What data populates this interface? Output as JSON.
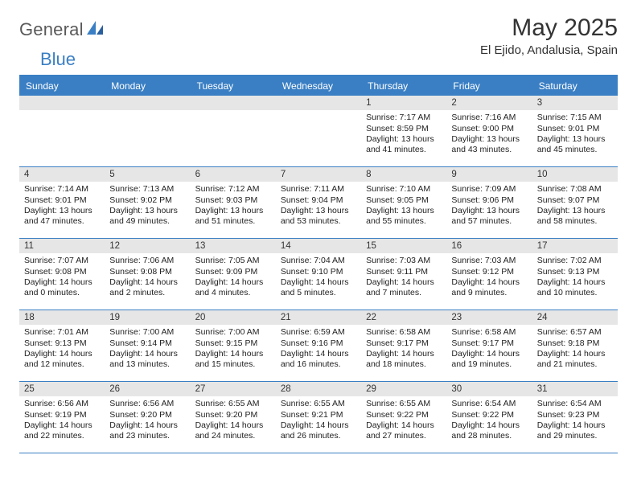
{
  "brand": {
    "part1": "General",
    "part2": "Blue"
  },
  "title": "May 2025",
  "location": "El Ejido, Andalusia, Spain",
  "header_bg": "#3a7fc4",
  "band_bg": "#e6e6e6",
  "day_names": [
    "Sunday",
    "Monday",
    "Tuesday",
    "Wednesday",
    "Thursday",
    "Friday",
    "Saturday"
  ],
  "weeks": [
    [
      null,
      null,
      null,
      null,
      {
        "n": "1",
        "sr": "Sunrise: 7:17 AM",
        "ss": "Sunset: 8:59 PM",
        "dl": "Daylight: 13 hours and 41 minutes."
      },
      {
        "n": "2",
        "sr": "Sunrise: 7:16 AM",
        "ss": "Sunset: 9:00 PM",
        "dl": "Daylight: 13 hours and 43 minutes."
      },
      {
        "n": "3",
        "sr": "Sunrise: 7:15 AM",
        "ss": "Sunset: 9:01 PM",
        "dl": "Daylight: 13 hours and 45 minutes."
      }
    ],
    [
      {
        "n": "4",
        "sr": "Sunrise: 7:14 AM",
        "ss": "Sunset: 9:01 PM",
        "dl": "Daylight: 13 hours and 47 minutes."
      },
      {
        "n": "5",
        "sr": "Sunrise: 7:13 AM",
        "ss": "Sunset: 9:02 PM",
        "dl": "Daylight: 13 hours and 49 minutes."
      },
      {
        "n": "6",
        "sr": "Sunrise: 7:12 AM",
        "ss": "Sunset: 9:03 PM",
        "dl": "Daylight: 13 hours and 51 minutes."
      },
      {
        "n": "7",
        "sr": "Sunrise: 7:11 AM",
        "ss": "Sunset: 9:04 PM",
        "dl": "Daylight: 13 hours and 53 minutes."
      },
      {
        "n": "8",
        "sr": "Sunrise: 7:10 AM",
        "ss": "Sunset: 9:05 PM",
        "dl": "Daylight: 13 hours and 55 minutes."
      },
      {
        "n": "9",
        "sr": "Sunrise: 7:09 AM",
        "ss": "Sunset: 9:06 PM",
        "dl": "Daylight: 13 hours and 57 minutes."
      },
      {
        "n": "10",
        "sr": "Sunrise: 7:08 AM",
        "ss": "Sunset: 9:07 PM",
        "dl": "Daylight: 13 hours and 58 minutes."
      }
    ],
    [
      {
        "n": "11",
        "sr": "Sunrise: 7:07 AM",
        "ss": "Sunset: 9:08 PM",
        "dl": "Daylight: 14 hours and 0 minutes."
      },
      {
        "n": "12",
        "sr": "Sunrise: 7:06 AM",
        "ss": "Sunset: 9:08 PM",
        "dl": "Daylight: 14 hours and 2 minutes."
      },
      {
        "n": "13",
        "sr": "Sunrise: 7:05 AM",
        "ss": "Sunset: 9:09 PM",
        "dl": "Daylight: 14 hours and 4 minutes."
      },
      {
        "n": "14",
        "sr": "Sunrise: 7:04 AM",
        "ss": "Sunset: 9:10 PM",
        "dl": "Daylight: 14 hours and 5 minutes."
      },
      {
        "n": "15",
        "sr": "Sunrise: 7:03 AM",
        "ss": "Sunset: 9:11 PM",
        "dl": "Daylight: 14 hours and 7 minutes."
      },
      {
        "n": "16",
        "sr": "Sunrise: 7:03 AM",
        "ss": "Sunset: 9:12 PM",
        "dl": "Daylight: 14 hours and 9 minutes."
      },
      {
        "n": "17",
        "sr": "Sunrise: 7:02 AM",
        "ss": "Sunset: 9:13 PM",
        "dl": "Daylight: 14 hours and 10 minutes."
      }
    ],
    [
      {
        "n": "18",
        "sr": "Sunrise: 7:01 AM",
        "ss": "Sunset: 9:13 PM",
        "dl": "Daylight: 14 hours and 12 minutes."
      },
      {
        "n": "19",
        "sr": "Sunrise: 7:00 AM",
        "ss": "Sunset: 9:14 PM",
        "dl": "Daylight: 14 hours and 13 minutes."
      },
      {
        "n": "20",
        "sr": "Sunrise: 7:00 AM",
        "ss": "Sunset: 9:15 PM",
        "dl": "Daylight: 14 hours and 15 minutes."
      },
      {
        "n": "21",
        "sr": "Sunrise: 6:59 AM",
        "ss": "Sunset: 9:16 PM",
        "dl": "Daylight: 14 hours and 16 minutes."
      },
      {
        "n": "22",
        "sr": "Sunrise: 6:58 AM",
        "ss": "Sunset: 9:17 PM",
        "dl": "Daylight: 14 hours and 18 minutes."
      },
      {
        "n": "23",
        "sr": "Sunrise: 6:58 AM",
        "ss": "Sunset: 9:17 PM",
        "dl": "Daylight: 14 hours and 19 minutes."
      },
      {
        "n": "24",
        "sr": "Sunrise: 6:57 AM",
        "ss": "Sunset: 9:18 PM",
        "dl": "Daylight: 14 hours and 21 minutes."
      }
    ],
    [
      {
        "n": "25",
        "sr": "Sunrise: 6:56 AM",
        "ss": "Sunset: 9:19 PM",
        "dl": "Daylight: 14 hours and 22 minutes."
      },
      {
        "n": "26",
        "sr": "Sunrise: 6:56 AM",
        "ss": "Sunset: 9:20 PM",
        "dl": "Daylight: 14 hours and 23 minutes."
      },
      {
        "n": "27",
        "sr": "Sunrise: 6:55 AM",
        "ss": "Sunset: 9:20 PM",
        "dl": "Daylight: 14 hours and 24 minutes."
      },
      {
        "n": "28",
        "sr": "Sunrise: 6:55 AM",
        "ss": "Sunset: 9:21 PM",
        "dl": "Daylight: 14 hours and 26 minutes."
      },
      {
        "n": "29",
        "sr": "Sunrise: 6:55 AM",
        "ss": "Sunset: 9:22 PM",
        "dl": "Daylight: 14 hours and 27 minutes."
      },
      {
        "n": "30",
        "sr": "Sunrise: 6:54 AM",
        "ss": "Sunset: 9:22 PM",
        "dl": "Daylight: 14 hours and 28 minutes."
      },
      {
        "n": "31",
        "sr": "Sunrise: 6:54 AM",
        "ss": "Sunset: 9:23 PM",
        "dl": "Daylight: 14 hours and 29 minutes."
      }
    ]
  ]
}
